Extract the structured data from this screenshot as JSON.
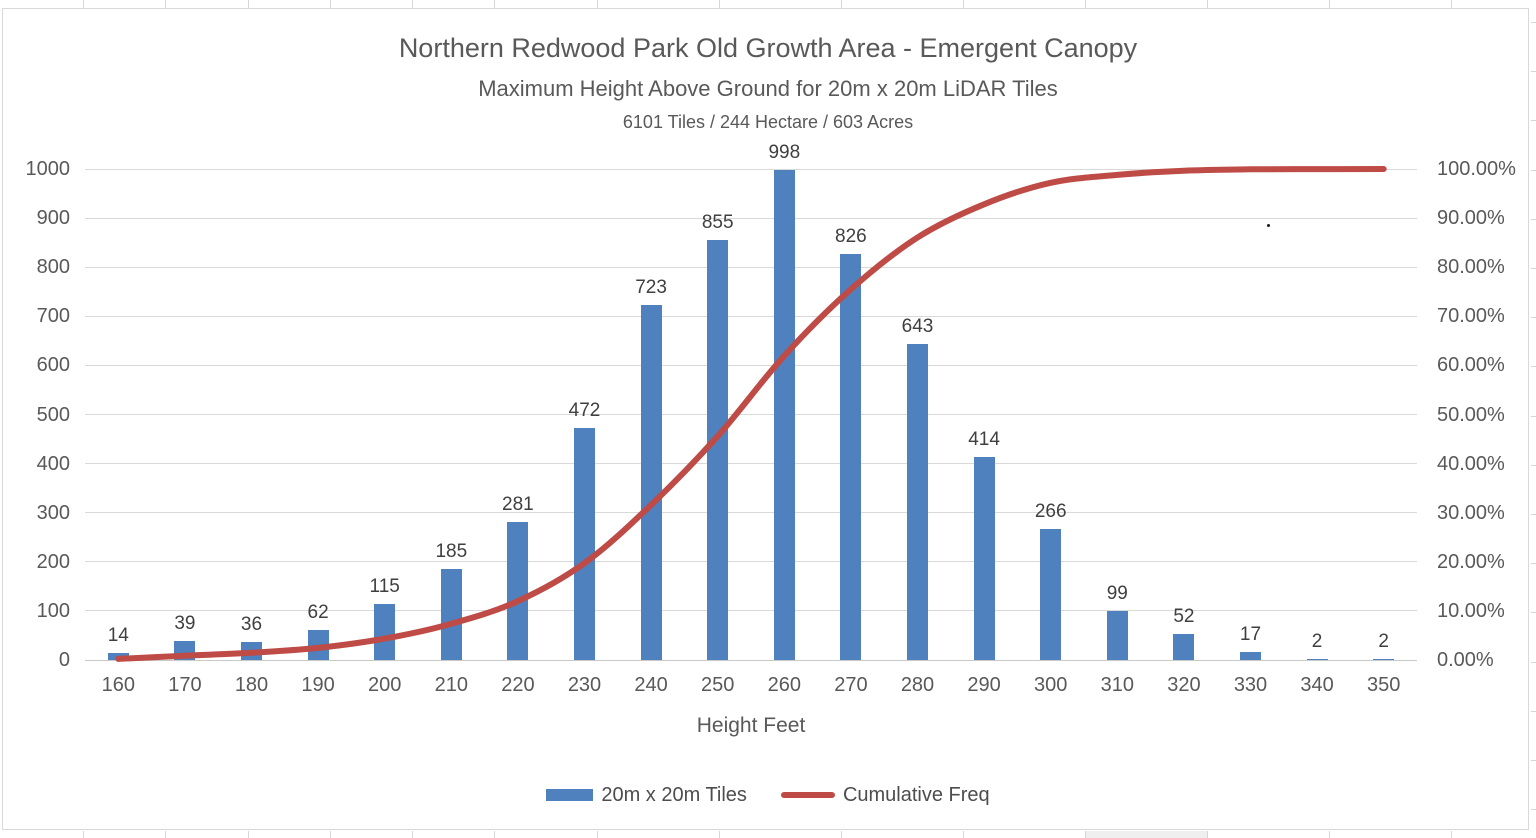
{
  "titles": {
    "title": "Northern Redwood Park Old Growth Area - Emergent Canopy",
    "subtitle": "Maximum Height Above Ground for 20m x 20m LiDAR Tiles",
    "info": "6101 Tiles / 244 Hectare / 603 Acres"
  },
  "x_axis": {
    "title": "Height Feet"
  },
  "legend": {
    "bars_label": "20m x 20m Tiles",
    "line_label": "Cumulative Freq"
  },
  "colors": {
    "bar": "#4e81bd",
    "line": "#bf4b47"
  },
  "chart_data": {
    "type": "bar",
    "title": "Northern Redwood Park Old Growth Area - Emergent Canopy",
    "subtitle": "Maximum Height Above Ground for 20m x 20m LiDAR Tiles",
    "annotation": "6101 Tiles / 244 Hectare / 603 Acres",
    "xlabel": "Height Feet",
    "ylabel_left": "",
    "ylabel_right": "",
    "grid": true,
    "legend_position": "bottom",
    "categories": [
      160,
      170,
      180,
      190,
      200,
      210,
      220,
      230,
      240,
      250,
      260,
      270,
      280,
      290,
      300,
      310,
      320,
      330,
      340,
      350
    ],
    "series": [
      {
        "name": "20m x 20m Tiles",
        "type": "bar",
        "axis": "left",
        "color": "#4e81bd",
        "values": [
          14,
          39,
          36,
          62,
          115,
          185,
          281,
          472,
          723,
          855,
          998,
          826,
          643,
          414,
          266,
          99,
          52,
          17,
          2,
          2
        ]
      },
      {
        "name": "Cumulative Freq",
        "type": "line",
        "axis": "right",
        "color": "#bf4b47",
        "values": [
          0.23,
          0.87,
          1.46,
          2.47,
          4.36,
          7.39,
          12.0,
          19.73,
          31.59,
          45.6,
          61.96,
          75.5,
          86.04,
          92.82,
          97.18,
          98.8,
          99.66,
          99.93,
          99.97,
          100.0
        ]
      }
    ],
    "left_axis": {
      "min": 0,
      "max": 1000,
      "step": 100
    },
    "right_axis": {
      "min": 0,
      "max": 100,
      "step": 10,
      "format": "percent-2dp"
    },
    "bar_value_labels_shown": true
  }
}
